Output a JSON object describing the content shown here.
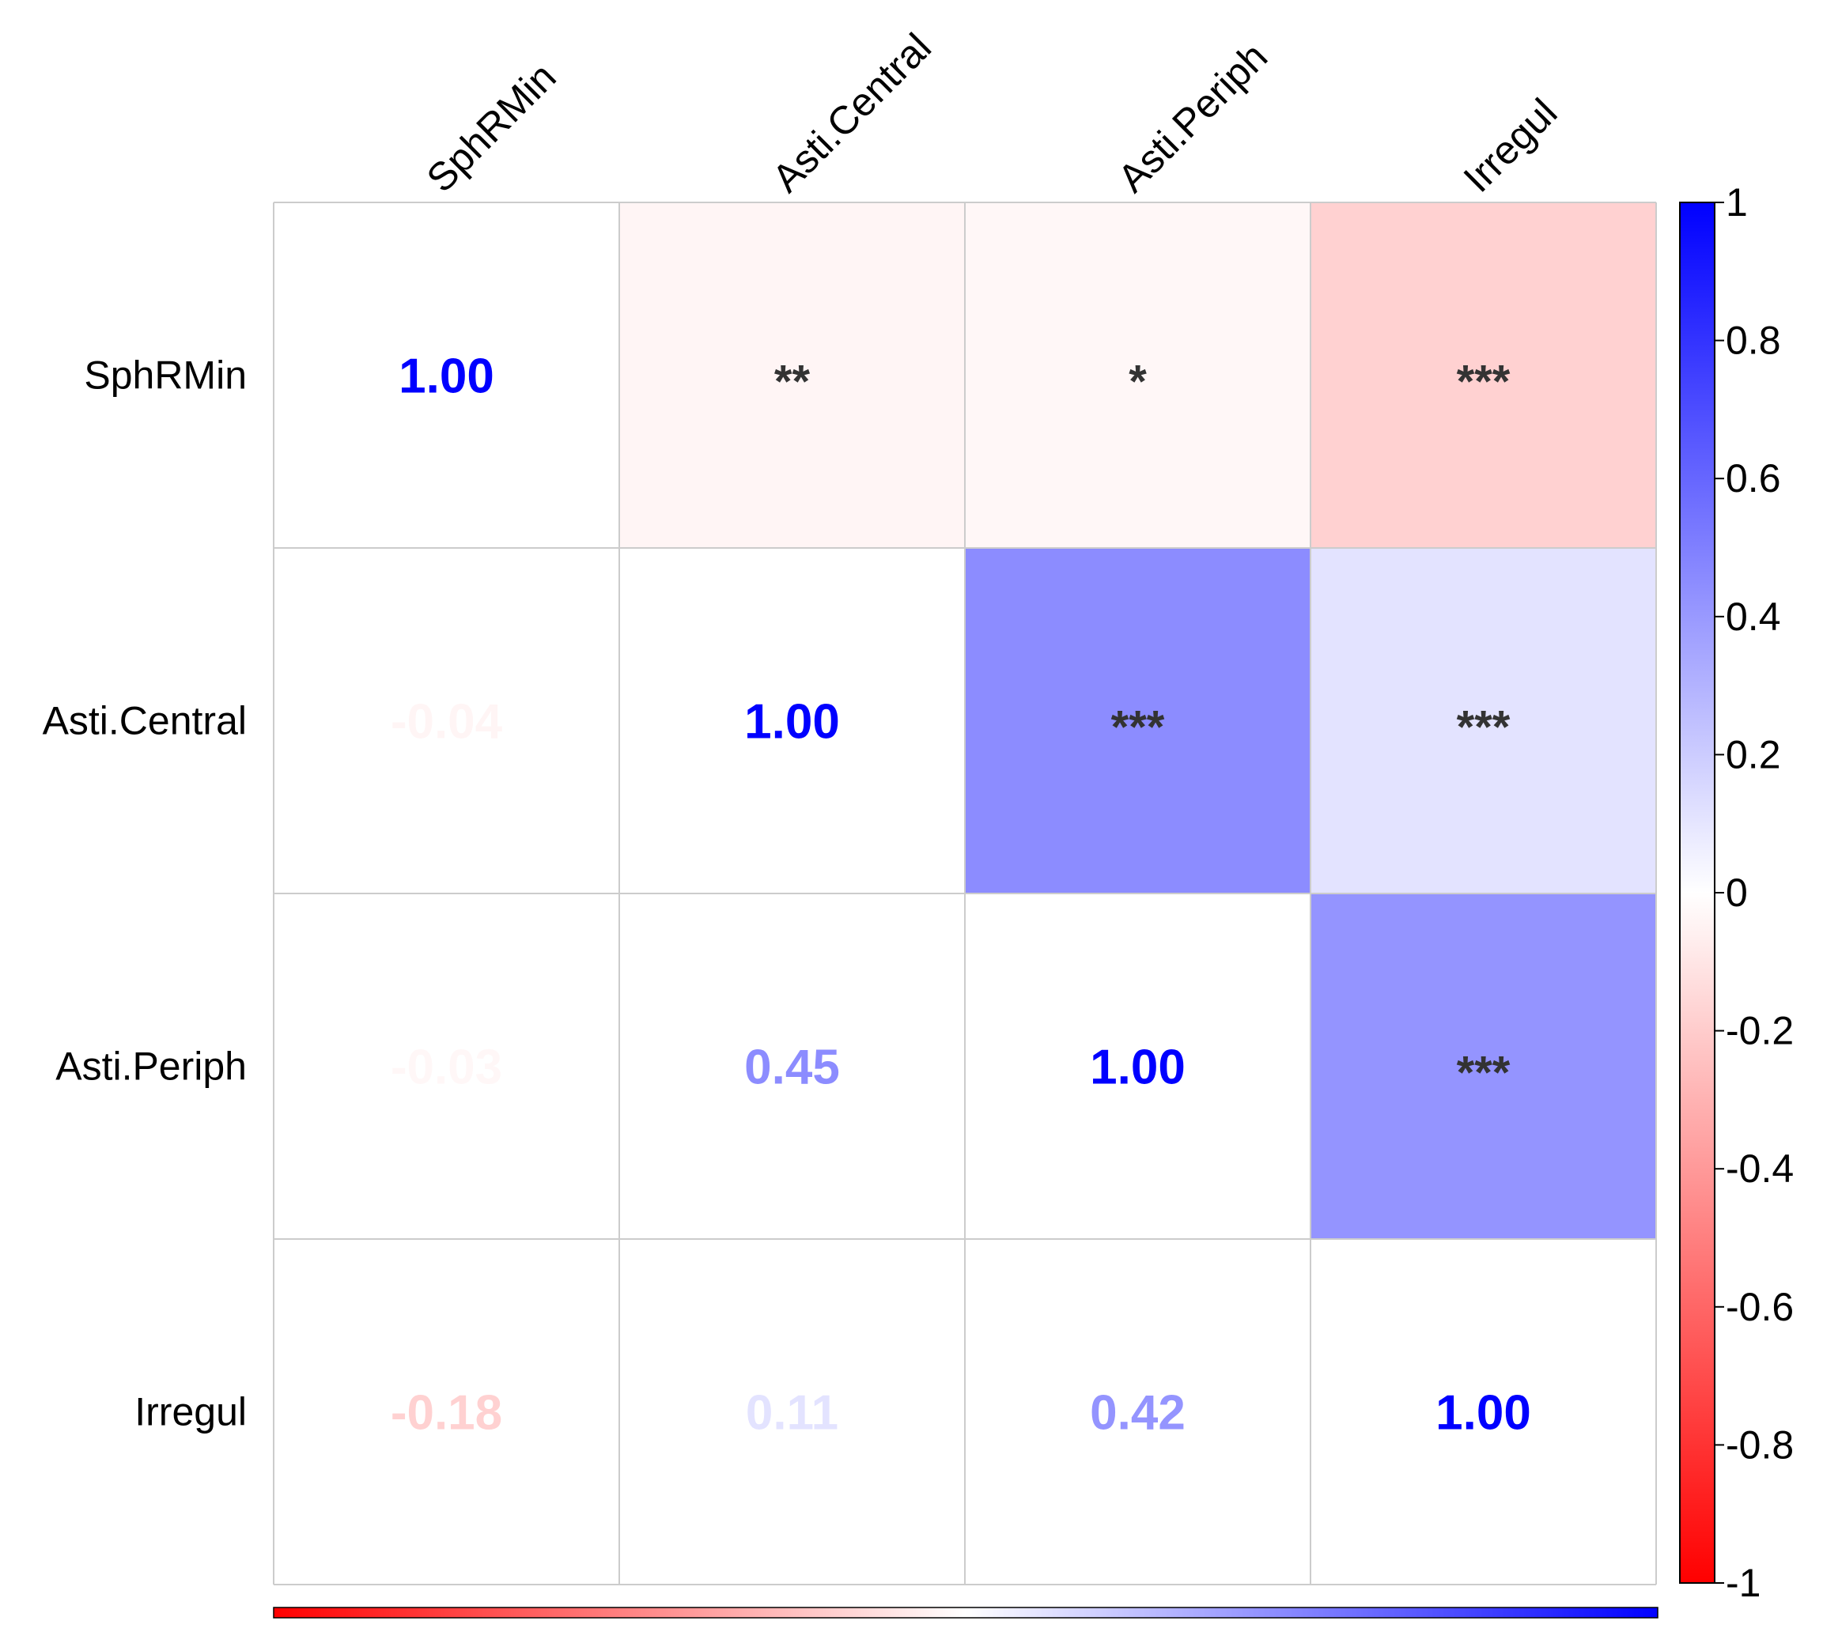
{
  "chart_data": {
    "type": "heatmap",
    "title": "",
    "variables": [
      "SphRMin",
      "Asti.Central",
      "Asti.Periph",
      "Irregul"
    ],
    "correlation_matrix": [
      [
        1.0,
        -0.04,
        -0.03,
        -0.18
      ],
      [
        -0.04,
        1.0,
        0.45,
        0.11
      ],
      [
        -0.03,
        0.45,
        1.0,
        0.42
      ],
      [
        -0.18,
        0.11,
        0.42,
        1.0
      ]
    ],
    "lower_labels": [
      [
        "1.00",
        "",
        "",
        ""
      ],
      [
        "-0.04",
        "1.00",
        "",
        ""
      ],
      [
        "-0.03",
        "0.45",
        "1.00",
        ""
      ],
      [
        "-0.18",
        "0.11",
        "0.42",
        "1.00"
      ]
    ],
    "significance": [
      [
        "",
        "**",
        "*",
        "***"
      ],
      [
        "",
        "",
        "***",
        "***"
      ],
      [
        "",
        "",
        "",
        "***"
      ],
      [
        "",
        "",
        "",
        ""
      ]
    ],
    "colorbar": {
      "range": [
        -1,
        1
      ],
      "ticks": [
        "1",
        "0.8",
        "0.6",
        "0.4",
        "0.2",
        "0",
        "-0.2",
        "-0.4",
        "-0.6",
        "-0.8",
        "-1"
      ],
      "tick_values": [
        1,
        0.8,
        0.6,
        0.4,
        0.2,
        0,
        -0.2,
        -0.4,
        -0.6,
        -0.8,
        -1
      ],
      "low_color": "#FF0000",
      "mid_color": "#FFFFFF",
      "high_color": "#0000FF"
    },
    "grid_color": "#CCCCCC",
    "star_color": "#333333",
    "axis_text_color": "#000000"
  }
}
